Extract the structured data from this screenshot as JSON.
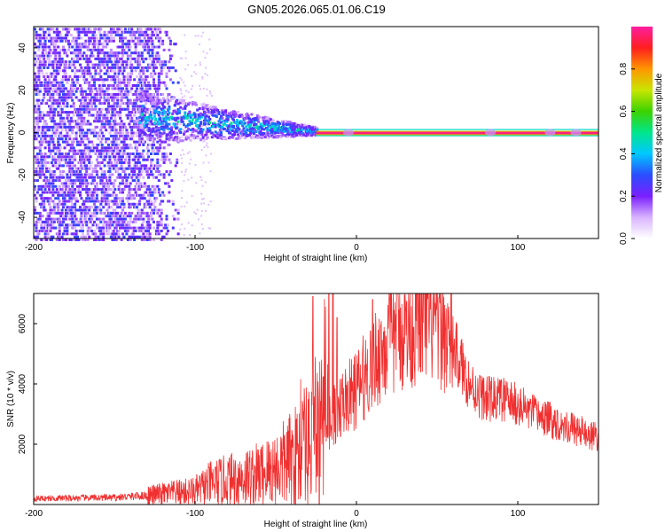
{
  "title": "GN05.2026.065.01.06.C19",
  "chart_data": [
    {
      "type": "heatmap",
      "title": "GN05.2026.065.01.06.C19",
      "xlabel": "Height of straight line (km)",
      "ylabel": "Frequency (Hz)",
      "xlim": [
        -200,
        150
      ],
      "ylim": [
        -50,
        50
      ],
      "x_ticks": [
        -200,
        -100,
        0,
        100
      ],
      "y_ticks": [
        -40,
        -20,
        0,
        20,
        40
      ],
      "grid": false,
      "colorbar": {
        "label": "Normalized spectral amplitude",
        "range": [
          0,
          1
        ],
        "ticks": [
          0.0,
          0.2,
          0.4,
          0.6,
          0.8
        ],
        "colors": [
          "#ffffff",
          "#d9b3ff",
          "#7a1fff",
          "#2a4dff",
          "#00c8ff",
          "#00e68c",
          "#3cd200",
          "#c8e600",
          "#ff9600",
          "#ff1e1e",
          "#ff1ea0"
        ]
      },
      "features": [
        {
          "name": "noise",
          "x_range": [
            -200,
            -110
          ],
          "freq_spread": 50,
          "amplitude": 0.25
        },
        {
          "name": "converging",
          "x_range": [
            -135,
            -25
          ],
          "freq_spread_start": 12,
          "freq_spread_end": 2,
          "center_start": 8,
          "center_end": 1,
          "amplitude": 0.45
        },
        {
          "name": "carrier",
          "x_range": [
            -25,
            150
          ],
          "freq": 0,
          "amplitude": 1.0
        }
      ]
    },
    {
      "type": "line",
      "xlabel": "Height of straight line (km)",
      "ylabel": "SNR (10 * v/v)",
      "xlim": [
        -200,
        150
      ],
      "ylim": [
        0,
        7000
      ],
      "x_ticks": [
        -200,
        -100,
        0,
        100
      ],
      "y_ticks": [
        2000,
        4000,
        6000
      ],
      "grid": false,
      "series": [
        {
          "name": "SNR",
          "color": "#f03030",
          "envelope": {
            "x": [
              -200,
              -150,
              -130,
              -120,
              -100,
              -90,
              -80,
              -70,
              -60,
              -50,
              -40,
              -30,
              -20,
              -15,
              -10,
              0,
              10,
              20,
              30,
              40,
              50,
              60,
              65,
              70,
              75,
              80,
              90,
              100,
              110,
              120,
              130,
              140,
              150
            ],
            "y": [
              200,
              230,
              300,
              350,
              450,
              700,
              800,
              900,
              1000,
              1200,
              1500,
              1900,
              2600,
              2900,
              3300,
              3800,
              4700,
              5400,
              5800,
              6000,
              6000,
              5200,
              4600,
              4000,
              3700,
              3500,
              3500,
              3300,
              3000,
              2800,
              2600,
              2400,
              2200
            ]
          },
          "spikes": [
            {
              "x": -27,
              "y": 6900
            },
            {
              "x": -17,
              "y": 7000
            },
            {
              "x": -12,
              "y": 6200
            },
            {
              "x": 10,
              "y": 6800
            },
            {
              "x": 25,
              "y": 7100
            }
          ]
        }
      ]
    }
  ]
}
